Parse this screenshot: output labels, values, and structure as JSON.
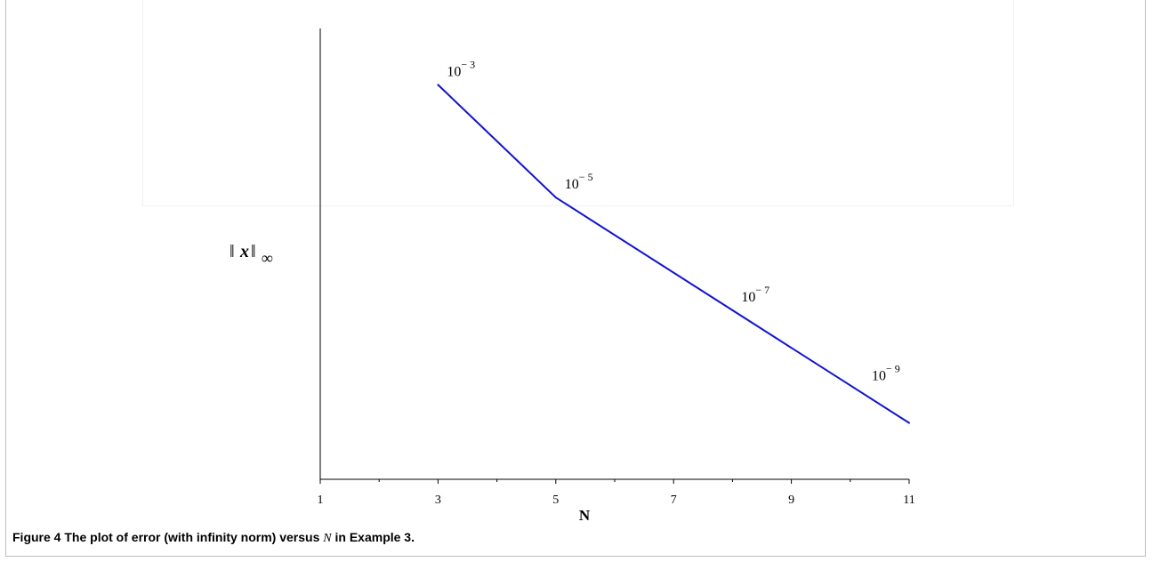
{
  "chart_data": {
    "type": "line",
    "title": "",
    "xlabel": "N",
    "ylabel": "||x||_∞",
    "x_ticks": [
      "1",
      "3",
      "5",
      "7",
      "9",
      "11"
    ],
    "xlim": [
      1,
      11
    ],
    "y_scale": "log",
    "ylim": [
      1e-10,
      0.01
    ],
    "grid": false,
    "series": [
      {
        "color": "#1010e0",
        "x": [
          3,
          5,
          8,
          11
        ],
        "y": [
          0.001,
          1e-05,
          1e-07,
          1e-09
        ],
        "labels": [
          "10^-3",
          "10^-5",
          "10^-7",
          "10^-9"
        ]
      }
    ]
  },
  "caption": {
    "figure_label": "Figure 4",
    "text_before": "The plot of error (with infinity norm) versus",
    "math": "N",
    "text_after": "in Example 3."
  }
}
